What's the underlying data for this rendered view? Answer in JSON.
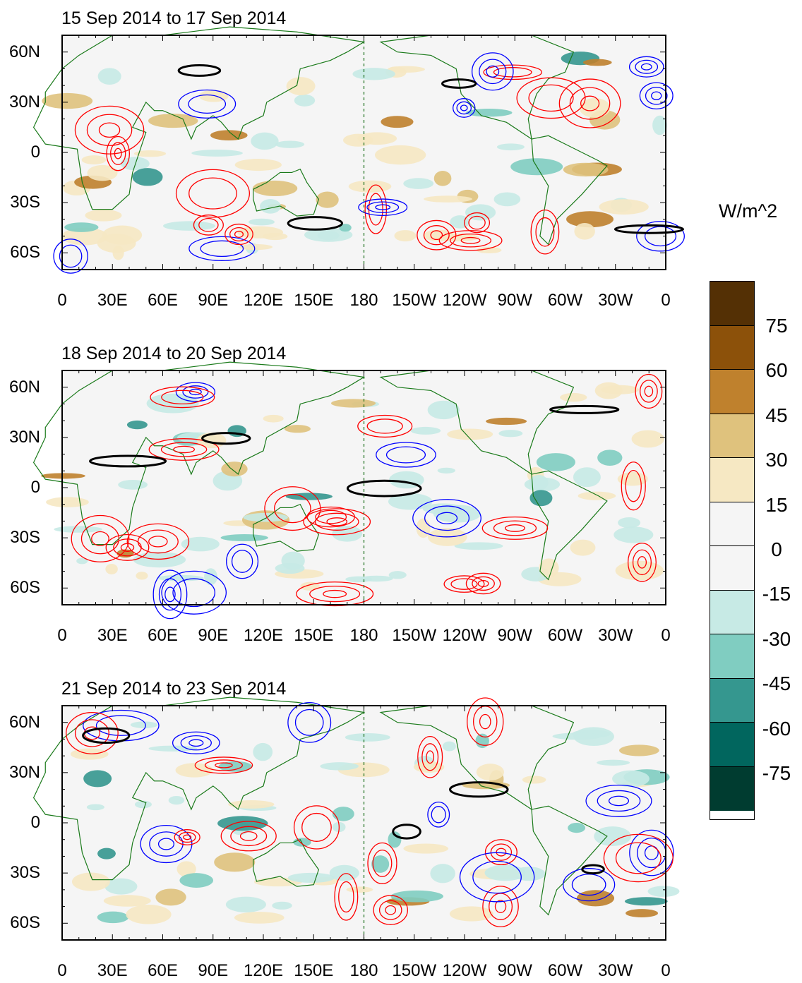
{
  "panels": [
    {
      "title": "15 Sep 2014 to 17 Sep 2014"
    },
    {
      "title": "18 Sep 2014 to 20 Sep 2014"
    },
    {
      "title": "21 Sep 2014 to 23 Sep 2014"
    }
  ],
  "lat_labels": [
    "60N",
    "30N",
    "0",
    "30S",
    "60S"
  ],
  "lon_labels": [
    "0",
    "30E",
    "60E",
    "90E",
    "120E",
    "150E",
    "180",
    "150W",
    "120W",
    "90W",
    "60W",
    "30W",
    "0"
  ],
  "colorbar": {
    "units": "W/m^2",
    "labels": [
      "75",
      "60",
      "45",
      "30",
      "15",
      "0",
      "-15",
      "-30",
      "-45",
      "-60",
      "-75"
    ],
    "colors": [
      "#543005",
      "#8c510a",
      "#bf812d",
      "#dfc27d",
      "#f6e8c3",
      "#f5f5f5",
      "#f5f5f5",
      "#c7eae5",
      "#80cdc1",
      "#35978f",
      "#01665e",
      "#003c30"
    ]
  },
  "contour_colors": {
    "positive": "#ff0000",
    "negative": "#0000ff",
    "significant": "#000000",
    "coast": "#1a7a1a"
  }
}
